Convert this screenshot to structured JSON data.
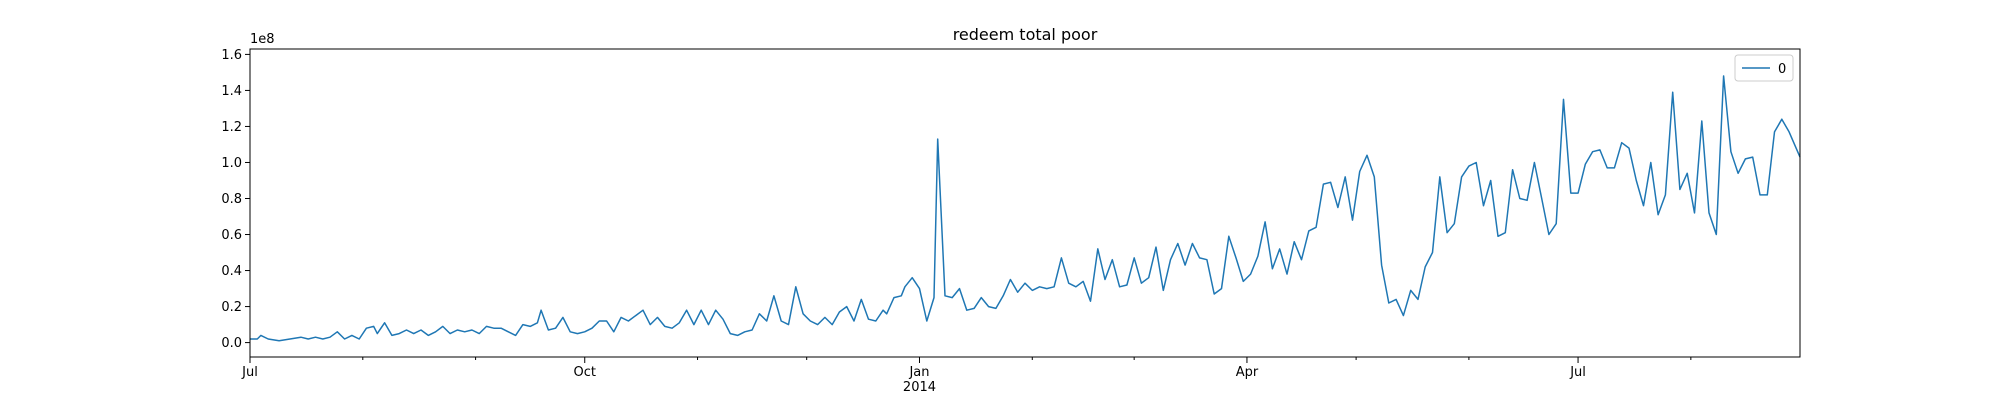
{
  "chart_data": {
    "type": "line",
    "title": "redeem total poor",
    "xlabel": "",
    "ylabel": "",
    "y_offset_text": "1e8",
    "ylim": [
      -0.08,
      1.63
    ],
    "xlim": [
      "2013-07-01",
      "2014-08-31"
    ],
    "grid": false,
    "legend": "upper right",
    "x_ticks": [
      {
        "date": "2013-07-01",
        "label": "Jul"
      },
      {
        "date": "2013-10-01",
        "label": "Oct"
      },
      {
        "date": "2014-01-01",
        "label": "Jan",
        "sublabel": "2014"
      },
      {
        "date": "2014-04-01",
        "label": "Apr"
      },
      {
        "date": "2014-07-01",
        "label": "Jul"
      }
    ],
    "x_minor_ticks": [
      "2013-08-01",
      "2013-09-01",
      "2013-11-01",
      "2013-12-01",
      "2014-02-01",
      "2014-03-01",
      "2014-05-01",
      "2014-06-01",
      "2014-08-01"
    ],
    "y_ticks": [
      {
        "value": 0.0,
        "label": "0.0"
      },
      {
        "value": 0.2,
        "label": "0.2"
      },
      {
        "value": 0.4,
        "label": "0.4"
      },
      {
        "value": 0.6,
        "label": "0.6"
      },
      {
        "value": 0.8,
        "label": "0.8"
      },
      {
        "value": 1.0,
        "label": "1.0"
      },
      {
        "value": 1.2,
        "label": "1.2"
      },
      {
        "value": 1.4,
        "label": "1.4"
      },
      {
        "value": 1.6,
        "label": "1.6"
      }
    ],
    "series": [
      {
        "name": "0",
        "color": "#1f77b4",
        "points": [
          [
            "2013-07-01",
            0.02
          ],
          [
            "2013-07-03",
            0.02
          ],
          [
            "2013-07-04",
            0.04
          ],
          [
            "2013-07-06",
            0.02
          ],
          [
            "2013-07-09",
            0.01
          ],
          [
            "2013-07-12",
            0.02
          ],
          [
            "2013-07-15",
            0.03
          ],
          [
            "2013-07-17",
            0.02
          ],
          [
            "2013-07-19",
            0.03
          ],
          [
            "2013-07-21",
            0.02
          ],
          [
            "2013-07-23",
            0.03
          ],
          [
            "2013-07-25",
            0.06
          ],
          [
            "2013-07-27",
            0.02
          ],
          [
            "2013-07-29",
            0.04
          ],
          [
            "2013-07-31",
            0.02
          ],
          [
            "2013-08-02",
            0.08
          ],
          [
            "2013-08-04",
            0.09
          ],
          [
            "2013-08-05",
            0.05
          ],
          [
            "2013-08-07",
            0.11
          ],
          [
            "2013-08-09",
            0.04
          ],
          [
            "2013-08-11",
            0.05
          ],
          [
            "2013-08-13",
            0.07
          ],
          [
            "2013-08-15",
            0.05
          ],
          [
            "2013-08-17",
            0.07
          ],
          [
            "2013-08-19",
            0.04
          ],
          [
            "2013-08-21",
            0.06
          ],
          [
            "2013-08-23",
            0.09
          ],
          [
            "2013-08-25",
            0.05
          ],
          [
            "2013-08-27",
            0.07
          ],
          [
            "2013-08-29",
            0.06
          ],
          [
            "2013-08-31",
            0.07
          ],
          [
            "2013-09-02",
            0.05
          ],
          [
            "2013-09-04",
            0.09
          ],
          [
            "2013-09-06",
            0.08
          ],
          [
            "2013-09-08",
            0.08
          ],
          [
            "2013-09-10",
            0.06
          ],
          [
            "2013-09-12",
            0.04
          ],
          [
            "2013-09-14",
            0.1
          ],
          [
            "2013-09-16",
            0.09
          ],
          [
            "2013-09-18",
            0.11
          ],
          [
            "2013-09-19",
            0.18
          ],
          [
            "2013-09-21",
            0.07
          ],
          [
            "2013-09-23",
            0.08
          ],
          [
            "2013-09-25",
            0.14
          ],
          [
            "2013-09-27",
            0.06
          ],
          [
            "2013-09-29",
            0.05
          ],
          [
            "2013-10-01",
            0.06
          ],
          [
            "2013-10-03",
            0.08
          ],
          [
            "2013-10-05",
            0.12
          ],
          [
            "2013-10-07",
            0.12
          ],
          [
            "2013-10-09",
            0.06
          ],
          [
            "2013-10-11",
            0.14
          ],
          [
            "2013-10-13",
            0.12
          ],
          [
            "2013-10-15",
            0.15
          ],
          [
            "2013-10-17",
            0.18
          ],
          [
            "2013-10-19",
            0.1
          ],
          [
            "2013-10-21",
            0.14
          ],
          [
            "2013-10-23",
            0.09
          ],
          [
            "2013-10-25",
            0.08
          ],
          [
            "2013-10-27",
            0.11
          ],
          [
            "2013-10-29",
            0.18
          ],
          [
            "2013-10-31",
            0.1
          ],
          [
            "2013-11-02",
            0.18
          ],
          [
            "2013-11-04",
            0.1
          ],
          [
            "2013-11-06",
            0.18
          ],
          [
            "2013-11-08",
            0.13
          ],
          [
            "2013-11-10",
            0.05
          ],
          [
            "2013-11-12",
            0.04
          ],
          [
            "2013-11-14",
            0.06
          ],
          [
            "2013-11-16",
            0.07
          ],
          [
            "2013-11-18",
            0.16
          ],
          [
            "2013-11-20",
            0.12
          ],
          [
            "2013-11-22",
            0.26
          ],
          [
            "2013-11-24",
            0.12
          ],
          [
            "2013-11-26",
            0.1
          ],
          [
            "2013-11-28",
            0.31
          ],
          [
            "2013-11-30",
            0.16
          ],
          [
            "2013-12-02",
            0.12
          ],
          [
            "2013-12-04",
            0.1
          ],
          [
            "2013-12-06",
            0.14
          ],
          [
            "2013-12-08",
            0.1
          ],
          [
            "2013-12-10",
            0.17
          ],
          [
            "2013-12-12",
            0.2
          ],
          [
            "2013-12-14",
            0.12
          ],
          [
            "2013-12-16",
            0.24
          ],
          [
            "2013-12-18",
            0.13
          ],
          [
            "2013-12-20",
            0.12
          ],
          [
            "2013-12-22",
            0.18
          ],
          [
            "2013-12-23",
            0.16
          ],
          [
            "2013-12-25",
            0.25
          ],
          [
            "2013-12-27",
            0.26
          ],
          [
            "2013-12-28",
            0.31
          ],
          [
            "2013-12-30",
            0.36
          ],
          [
            "2014-01-01",
            0.3
          ],
          [
            "2014-01-03",
            0.12
          ],
          [
            "2014-01-05",
            0.25
          ],
          [
            "2014-01-06",
            1.13
          ],
          [
            "2014-01-08",
            0.26
          ],
          [
            "2014-01-10",
            0.25
          ],
          [
            "2014-01-12",
            0.3
          ],
          [
            "2014-01-14",
            0.18
          ],
          [
            "2014-01-16",
            0.19
          ],
          [
            "2014-01-18",
            0.25
          ],
          [
            "2014-01-20",
            0.2
          ],
          [
            "2014-01-22",
            0.19
          ],
          [
            "2014-01-24",
            0.26
          ],
          [
            "2014-01-26",
            0.35
          ],
          [
            "2014-01-28",
            0.28
          ],
          [
            "2014-01-30",
            0.33
          ],
          [
            "2014-02-01",
            0.29
          ],
          [
            "2014-02-03",
            0.31
          ],
          [
            "2014-02-05",
            0.3
          ],
          [
            "2014-02-07",
            0.31
          ],
          [
            "2014-02-09",
            0.47
          ],
          [
            "2014-02-11",
            0.33
          ],
          [
            "2014-02-13",
            0.31
          ],
          [
            "2014-02-15",
            0.34
          ],
          [
            "2014-02-17",
            0.23
          ],
          [
            "2014-02-19",
            0.52
          ],
          [
            "2014-02-21",
            0.35
          ],
          [
            "2014-02-23",
            0.46
          ],
          [
            "2014-02-25",
            0.31
          ],
          [
            "2014-02-27",
            0.32
          ],
          [
            "2014-03-01",
            0.47
          ],
          [
            "2014-03-03",
            0.33
          ],
          [
            "2014-03-05",
            0.36
          ],
          [
            "2014-03-07",
            0.53
          ],
          [
            "2014-03-09",
            0.29
          ],
          [
            "2014-03-11",
            0.46
          ],
          [
            "2014-03-13",
            0.55
          ],
          [
            "2014-03-15",
            0.43
          ],
          [
            "2014-03-17",
            0.55
          ],
          [
            "2014-03-19",
            0.47
          ],
          [
            "2014-03-21",
            0.46
          ],
          [
            "2014-03-23",
            0.27
          ],
          [
            "2014-03-25",
            0.3
          ],
          [
            "2014-03-27",
            0.59
          ],
          [
            "2014-03-29",
            0.47
          ],
          [
            "2014-03-31",
            0.34
          ],
          [
            "2014-04-02",
            0.38
          ],
          [
            "2014-04-04",
            0.48
          ],
          [
            "2014-04-06",
            0.67
          ],
          [
            "2014-04-08",
            0.41
          ],
          [
            "2014-04-10",
            0.52
          ],
          [
            "2014-04-12",
            0.38
          ],
          [
            "2014-04-14",
            0.56
          ],
          [
            "2014-04-16",
            0.46
          ],
          [
            "2014-04-18",
            0.62
          ],
          [
            "2014-04-20",
            0.64
          ],
          [
            "2014-04-22",
            0.88
          ],
          [
            "2014-04-24",
            0.89
          ],
          [
            "2014-04-26",
            0.75
          ],
          [
            "2014-04-28",
            0.92
          ],
          [
            "2014-04-30",
            0.68
          ],
          [
            "2014-05-02",
            0.95
          ],
          [
            "2014-05-04",
            1.04
          ],
          [
            "2014-05-06",
            0.92
          ],
          [
            "2014-05-08",
            0.43
          ],
          [
            "2014-05-10",
            0.22
          ],
          [
            "2014-05-12",
            0.24
          ],
          [
            "2014-05-14",
            0.15
          ],
          [
            "2014-05-16",
            0.29
          ],
          [
            "2014-05-18",
            0.24
          ],
          [
            "2014-05-20",
            0.42
          ],
          [
            "2014-05-22",
            0.5
          ],
          [
            "2014-05-24",
            0.92
          ],
          [
            "2014-05-26",
            0.61
          ],
          [
            "2014-05-28",
            0.66
          ],
          [
            "2014-05-30",
            0.92
          ],
          [
            "2014-06-01",
            0.98
          ],
          [
            "2014-06-03",
            1.0
          ],
          [
            "2014-06-05",
            0.76
          ],
          [
            "2014-06-07",
            0.9
          ],
          [
            "2014-06-09",
            0.59
          ],
          [
            "2014-06-11",
            0.61
          ],
          [
            "2014-06-13",
            0.96
          ],
          [
            "2014-06-15",
            0.8
          ],
          [
            "2014-06-17",
            0.79
          ],
          [
            "2014-06-19",
            1.0
          ],
          [
            "2014-06-21",
            0.8
          ],
          [
            "2014-06-23",
            0.6
          ],
          [
            "2014-06-25",
            0.66
          ],
          [
            "2014-06-27",
            1.35
          ],
          [
            "2014-06-29",
            0.83
          ],
          [
            "2014-07-01",
            0.83
          ],
          [
            "2014-07-03",
            0.99
          ],
          [
            "2014-07-05",
            1.06
          ],
          [
            "2014-07-07",
            1.07
          ],
          [
            "2014-07-09",
            0.97
          ],
          [
            "2014-07-11",
            0.97
          ],
          [
            "2014-07-13",
            1.11
          ],
          [
            "2014-07-15",
            1.08
          ],
          [
            "2014-07-17",
            0.9
          ],
          [
            "2014-07-19",
            0.76
          ],
          [
            "2014-07-21",
            1.0
          ],
          [
            "2014-07-23",
            0.71
          ],
          [
            "2014-07-25",
            0.82
          ],
          [
            "2014-07-27",
            1.39
          ],
          [
            "2014-07-29",
            0.85
          ],
          [
            "2014-07-31",
            0.94
          ],
          [
            "2014-08-02",
            0.72
          ],
          [
            "2014-08-04",
            1.23
          ],
          [
            "2014-08-06",
            0.72
          ],
          [
            "2014-08-08",
            0.6
          ],
          [
            "2014-08-10",
            1.48
          ],
          [
            "2014-08-12",
            1.06
          ],
          [
            "2014-08-14",
            0.94
          ],
          [
            "2014-08-16",
            1.02
          ],
          [
            "2014-08-18",
            1.03
          ],
          [
            "2014-08-20",
            0.82
          ],
          [
            "2014-08-22",
            0.82
          ],
          [
            "2014-08-24",
            1.17
          ],
          [
            "2014-08-26",
            1.24
          ],
          [
            "2014-08-28",
            1.17
          ],
          [
            "2014-08-31",
            1.03
          ]
        ]
      }
    ]
  }
}
